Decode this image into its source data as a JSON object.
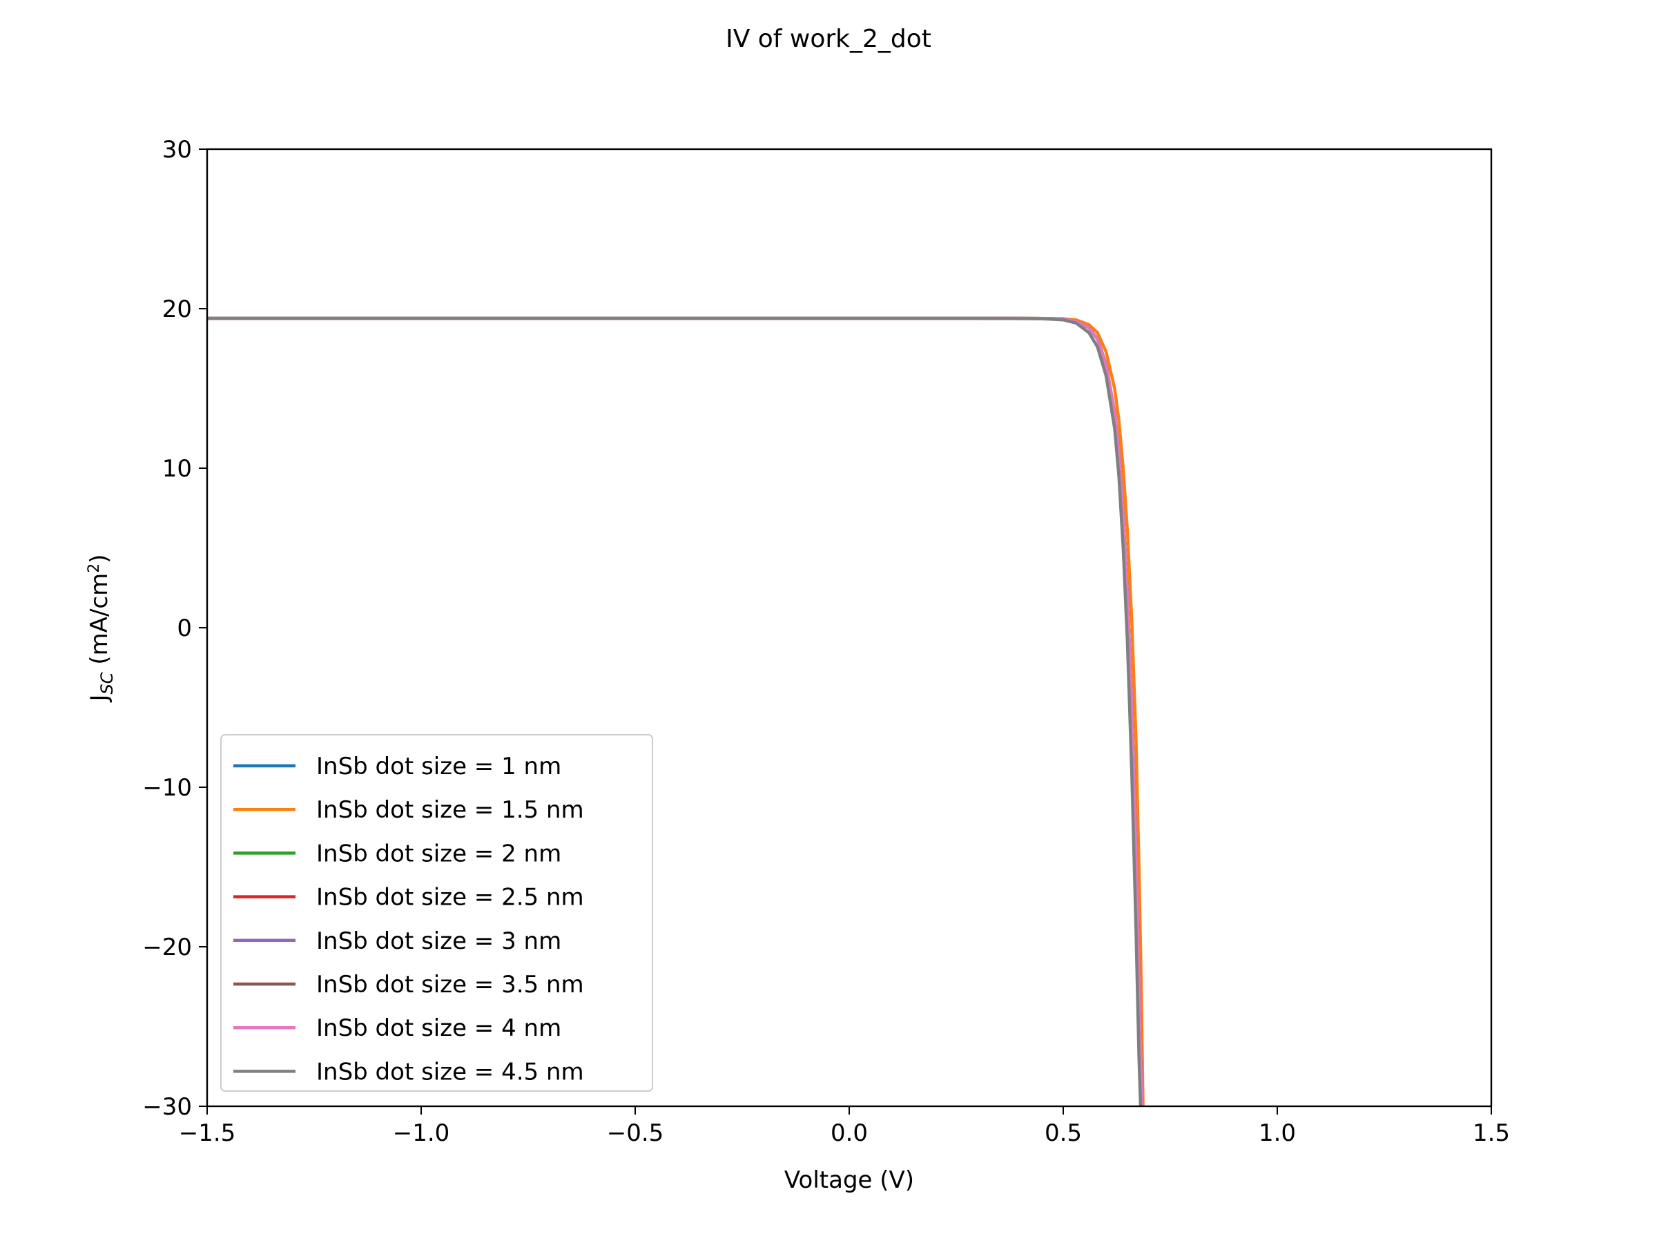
{
  "chart_data": {
    "type": "line",
    "title": "IV of work_2_dot",
    "xlabel": "Voltage (V)",
    "ylabel": {
      "base": "J",
      "sub": "SC",
      "unit_pre": " (mA/cm",
      "sup": "2",
      "unit_post": ")"
    },
    "xlim": [
      -1.5,
      1.5
    ],
    "ylim": [
      -30,
      30
    ],
    "xticks": [
      -1.5,
      -1.0,
      -0.5,
      0.0,
      0.5,
      1.0,
      1.5
    ],
    "xtick_labels": [
      "−1.5",
      "−1.0",
      "−0.5",
      "0.0",
      "0.5",
      "1.0",
      "1.5"
    ],
    "yticks": [
      -30,
      -20,
      -10,
      0,
      10,
      20,
      30
    ],
    "ytick_labels": [
      "−30",
      "−20",
      "−10",
      "0",
      "10",
      "20",
      "30"
    ],
    "grid": false,
    "legend_position": "lower-left",
    "x": [
      -1.5,
      -1.0,
      -0.5,
      0.0,
      0.3,
      0.45,
      0.5,
      0.53,
      0.56,
      0.58,
      0.6,
      0.62,
      0.63,
      0.64,
      0.65,
      0.66,
      0.67,
      0.677,
      0.682,
      0.687
    ],
    "series": [
      {
        "name": "InSb dot size = 1 nm",
        "color": "#1f77b4",
        "values": [
          19.4,
          19.4,
          19.4,
          19.4,
          19.4,
          19.38,
          19.35,
          19.2,
          18.8,
          18.1,
          16.5,
          13.5,
          11.0,
          7.0,
          2.0,
          -5.0,
          -14.0,
          -22.0,
          -28.0,
          -31.0
        ]
      },
      {
        "name": "InSb dot size = 1.5 nm",
        "color": "#ff7f0e",
        "values": [
          19.4,
          19.4,
          19.4,
          19.4,
          19.4,
          19.39,
          19.37,
          19.3,
          19.0,
          18.5,
          17.3,
          15.0,
          13.0,
          10.0,
          6.0,
          0.5,
          -7.0,
          -15.0,
          -22.0,
          -31.0
        ]
      },
      {
        "name": "InSb dot size = 2 nm",
        "color": "#2ca02c",
        "values": [
          19.4,
          19.4,
          19.4,
          19.4,
          19.4,
          19.38,
          19.35,
          19.2,
          18.8,
          18.1,
          16.5,
          13.5,
          11.0,
          7.0,
          2.0,
          -5.0,
          -14.0,
          -22.0,
          -28.0,
          -31.0
        ]
      },
      {
        "name": "InSb dot size = 2.5 nm",
        "color": "#d62728",
        "values": [
          19.4,
          19.4,
          19.4,
          19.4,
          19.4,
          19.38,
          19.35,
          19.2,
          18.8,
          18.1,
          16.5,
          13.5,
          11.0,
          7.0,
          2.0,
          -5.0,
          -14.0,
          -22.0,
          -28.0,
          -31.0
        ]
      },
      {
        "name": "InSb dot size = 3 nm",
        "color": "#9467bd",
        "values": [
          19.4,
          19.4,
          19.4,
          19.4,
          19.4,
          19.38,
          19.35,
          19.2,
          18.8,
          18.1,
          16.5,
          13.5,
          11.0,
          7.0,
          2.0,
          -5.0,
          -14.0,
          -22.0,
          -28.0,
          -31.0
        ]
      },
      {
        "name": "InSb dot size = 3.5 nm",
        "color": "#8c564b",
        "values": [
          19.4,
          19.4,
          19.4,
          19.4,
          19.4,
          19.38,
          19.35,
          19.2,
          18.8,
          18.1,
          16.5,
          13.5,
          11.0,
          7.0,
          2.0,
          -5.0,
          -14.0,
          -22.0,
          -28.0,
          -31.0
        ]
      },
      {
        "name": "InSb dot size = 4 nm",
        "color": "#e377c2",
        "values": [
          19.4,
          19.4,
          19.4,
          19.4,
          19.4,
          19.38,
          19.35,
          19.2,
          18.8,
          18.1,
          16.5,
          13.5,
          11.0,
          7.0,
          2.0,
          -5.0,
          -14.0,
          -22.0,
          -28.0,
          -31.0
        ]
      },
      {
        "name": "InSb dot size = 4.5 nm",
        "color": "#7f7f7f",
        "values": [
          19.4,
          19.4,
          19.4,
          19.4,
          19.4,
          19.37,
          19.3,
          19.1,
          18.5,
          17.6,
          15.8,
          12.5,
          9.5,
          5.0,
          -1.0,
          -9.0,
          -19.0,
          -27.0,
          -31.0,
          -31.0
        ]
      }
    ]
  }
}
